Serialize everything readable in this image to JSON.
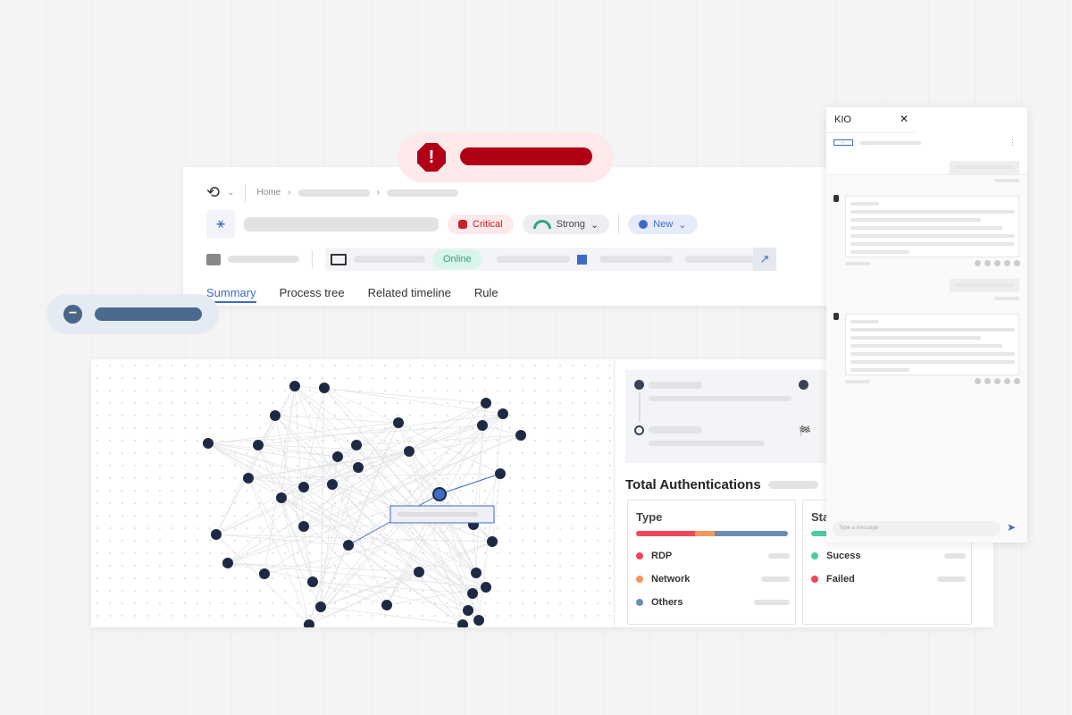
{
  "alert": {
    "icon": "alert-octagon-icon",
    "color": "#b10016"
  },
  "header": {
    "breadcrumb": {
      "home": "Home"
    },
    "badges": {
      "severity": "Critical",
      "confidence": "Strong",
      "status": "New"
    },
    "device": {
      "status": "Online",
      "os_icon": "windows-icon"
    },
    "tabs": [
      "Summary",
      "Process tree",
      "Related timeline",
      "Rule"
    ],
    "active_tab": "Summary"
  },
  "summary": {
    "title": "Total Authentications",
    "type_card": {
      "title": "Type",
      "items": [
        {
          "label": "RDP",
          "color": "#f0485a",
          "share": 39
        },
        {
          "label": "Network",
          "color": "#f4975a",
          "share": 13
        },
        {
          "label": "Others",
          "color": "#6b8db3",
          "share": 48
        }
      ]
    },
    "status_card": {
      "title": "Status",
      "items": [
        {
          "label": "Sucess",
          "color": "#4fcca0"
        },
        {
          "label": "Failed",
          "color": "#f0485a"
        }
      ]
    }
  },
  "chat": {
    "title": "KIO",
    "placeholder": "Type a message",
    "accent": "#3d6bc7"
  },
  "colors": {
    "accent": "#3d6bc7",
    "node": "#1e2a44"
  }
}
